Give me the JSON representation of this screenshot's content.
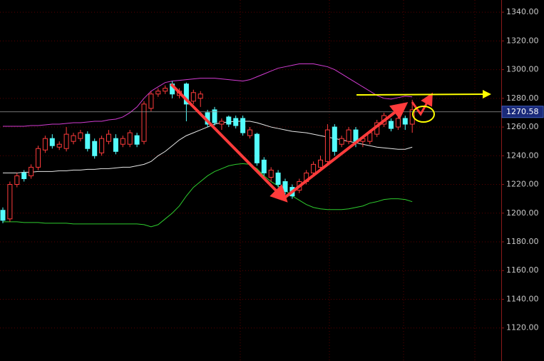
{
  "chart_data": {
    "type": "candlestick",
    "ohlc": [
      [
        1202,
        1204,
        1193,
        1195
      ],
      [
        1196,
        1222,
        1194,
        1220
      ],
      [
        1220,
        1228,
        1218,
        1226
      ],
      [
        1228,
        1230,
        1222,
        1224
      ],
      [
        1226,
        1234,
        1224,
        1232
      ],
      [
        1232,
        1247,
        1230,
        1245
      ],
      [
        1244,
        1254,
        1242,
        1252
      ],
      [
        1252,
        1255,
        1245,
        1247
      ],
      [
        1246,
        1250,
        1244,
        1248
      ],
      [
        1245,
        1260,
        1243,
        1255
      ],
      [
        1250,
        1256,
        1248,
        1254
      ],
      [
        1252,
        1258,
        1250,
        1256
      ],
      [
        1255,
        1257,
        1243,
        1245
      ],
      [
        1250,
        1252,
        1238,
        1240
      ],
      [
        1242,
        1254,
        1240,
        1252
      ],
      [
        1250,
        1258,
        1248,
        1255
      ],
      [
        1252,
        1255,
        1241,
        1243
      ],
      [
        1248,
        1254,
        1246,
        1252
      ],
      [
        1248,
        1258,
        1246,
        1256
      ],
      [
        1254,
        1256,
        1246,
        1248
      ],
      [
        1250,
        1278,
        1248,
        1276
      ],
      [
        1273,
        1285,
        1271,
        1283
      ],
      [
        1283,
        1287,
        1281,
        1285
      ],
      [
        1285,
        1289,
        1283,
        1287
      ],
      [
        1290,
        1292,
        1280,
        1283
      ],
      [
        1282,
        1287,
        1280,
        1285
      ],
      [
        1290,
        1291,
        1264,
        1276
      ],
      [
        1278,
        1286,
        1276,
        1284
      ],
      [
        1280,
        1285,
        1274,
        1283
      ],
      [
        1270,
        1272,
        1260,
        1262
      ],
      [
        1272,
        1274,
        1261,
        1263
      ],
      [
        1262,
        1266,
        1258,
        1264
      ],
      [
        1267,
        1268,
        1260,
        1262
      ],
      [
        1266,
        1268,
        1259,
        1261
      ],
      [
        1266,
        1268,
        1254,
        1256
      ],
      [
        1254,
        1260,
        1252,
        1258
      ],
      [
        1255,
        1256,
        1233,
        1235
      ],
      [
        1237,
        1239,
        1226,
        1228
      ],
      [
        1225,
        1232,
        1222,
        1230
      ],
      [
        1228,
        1230,
        1218,
        1220
      ],
      [
        1222,
        1224,
        1213,
        1215
      ],
      [
        1218,
        1220,
        1210,
        1212
      ],
      [
        1216,
        1224,
        1214,
        1222
      ],
      [
        1222,
        1230,
        1220,
        1228
      ],
      [
        1228,
        1236,
        1226,
        1234
      ],
      [
        1232,
        1240,
        1230,
        1237
      ],
      [
        1236,
        1262,
        1234,
        1258
      ],
      [
        1260,
        1262,
        1240,
        1243
      ],
      [
        1248,
        1254,
        1246,
        1252
      ],
      [
        1250,
        1260,
        1248,
        1258
      ],
      [
        1258,
        1260,
        1246,
        1250
      ],
      [
        1250,
        1254,
        1246,
        1252
      ],
      [
        1250,
        1258,
        1248,
        1256
      ],
      [
        1255,
        1265,
        1253,
        1263
      ],
      [
        1262,
        1270,
        1260,
        1268
      ],
      [
        1264,
        1266,
        1257,
        1259
      ],
      [
        1260,
        1268,
        1258,
        1266
      ],
      [
        1266,
        1268,
        1258,
        1262
      ],
      [
        1262,
        1279,
        1256,
        1272
      ]
    ],
    "up_color": "#ff3b3b",
    "down_color": "#54fcfc",
    "series": [
      {
        "color": "#d23cd2",
        "values": [
          1260.5,
          1260.5,
          1260.5,
          1260.5,
          1261,
          1261,
          1261.5,
          1262,
          1262,
          1262.5,
          1263,
          1263,
          1263.5,
          1264,
          1264,
          1265,
          1265.5,
          1267,
          1270,
          1274,
          1280,
          1285,
          1288,
          1291,
          1292,
          1292.5,
          1293,
          1293.5,
          1294,
          1294,
          1294,
          1293.5,
          1293,
          1292.5,
          1292,
          1293,
          1295,
          1297,
          1299,
          1301,
          1302,
          1303,
          1304,
          1304,
          1304,
          1303,
          1302,
          1300,
          1297,
          1294,
          1291,
          1288,
          1285,
          1282,
          1280,
          1279.5,
          1280.5,
          1281.5,
          1281
        ]
      },
      {
        "color": "#e6e6e6",
        "values": [
          1228,
          1228,
          1228,
          1228.5,
          1228.5,
          1229,
          1229,
          1229,
          1229.5,
          1229.5,
          1230,
          1230,
          1230.5,
          1230.5,
          1231,
          1231,
          1231.5,
          1232,
          1232,
          1233,
          1234,
          1236,
          1240,
          1243,
          1247,
          1251,
          1254,
          1256,
          1258,
          1260,
          1262,
          1263,
          1263.5,
          1264,
          1264,
          1264,
          1263,
          1261.5,
          1260,
          1259,
          1258,
          1257,
          1256.5,
          1256,
          1255,
          1254,
          1253,
          1252,
          1251,
          1250,
          1249,
          1248,
          1247,
          1246,
          1245.5,
          1245,
          1244.5,
          1244.5,
          1246
        ]
      },
      {
        "color": "#2ecc2e",
        "values": [
          1194,
          1194,
          1194,
          1193.5,
          1193.5,
          1193.5,
          1193,
          1193,
          1193,
          1193,
          1192.5,
          1192.5,
          1192.5,
          1192.5,
          1192.5,
          1192.5,
          1192.5,
          1192.5,
          1192.5,
          1192.5,
          1192,
          1190.5,
          1192,
          1196,
          1200,
          1205,
          1212,
          1218,
          1222,
          1226,
          1229,
          1231,
          1233,
          1234,
          1234.5,
          1234,
          1231,
          1226,
          1222,
          1219,
          1216,
          1212,
          1209,
          1206,
          1204,
          1203,
          1202.5,
          1202.5,
          1202.5,
          1203,
          1204,
          1205,
          1207,
          1208,
          1209.5,
          1210,
          1210,
          1209.5,
          1208
        ]
      }
    ],
    "current_price": 1270.58,
    "ylim": [
      1097,
      1348.5
    ],
    "yticks": [
      {
        "value": 1120,
        "label": "1120.00"
      },
      {
        "value": 1140,
        "label": "1140.00"
      },
      {
        "value": 1160,
        "label": "1160.00"
      },
      {
        "value": 1180,
        "label": "1180.00"
      },
      {
        "value": 1200,
        "label": "1200.00"
      },
      {
        "value": 1220,
        "label": "1220.00"
      },
      {
        "value": 1240,
        "label": "1240.00"
      },
      {
        "value": 1260,
        "label": "1260.00"
      },
      {
        "value": 1280,
        "label": "1280.00"
      },
      {
        "value": 1300,
        "label": "1300.00"
      },
      {
        "value": 1320,
        "label": "1320.00"
      },
      {
        "value": 1340,
        "label": "1340.00"
      }
    ],
    "grid": true
  }
}
